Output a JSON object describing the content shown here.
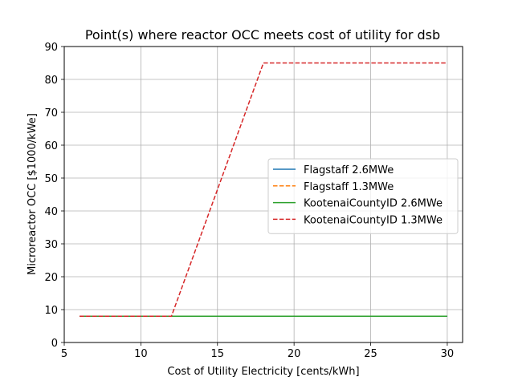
{
  "chart_data": {
    "type": "line",
    "title": "Point(s) where reactor OCC meets cost of utility for dsb",
    "xlabel": "Cost of Utility Electricity [cents/kWh]",
    "ylabel": "Microreactor OCC [$1000/kWe]",
    "xlim": [
      5,
      31
    ],
    "ylim": [
      0,
      90
    ],
    "xticks": [
      5,
      10,
      15,
      20,
      25,
      30
    ],
    "yticks": [
      0,
      10,
      20,
      30,
      40,
      50,
      60,
      70,
      80,
      90
    ],
    "grid": true,
    "legend_position": "center-right",
    "series": [
      {
        "name": "Flagstaff 2.6MWe",
        "color": "#1f77b4",
        "dash": "solid",
        "x": [
          6,
          30
        ],
        "y": [
          8,
          8
        ]
      },
      {
        "name": "Flagstaff 1.3MWe",
        "color": "#ff7f0e",
        "dash": "dashed",
        "x": [
          6,
          30
        ],
        "y": [
          8,
          8
        ]
      },
      {
        "name": "KootenaiCountyID 2.6MWe",
        "color": "#2ca02c",
        "dash": "solid",
        "x": [
          6,
          30
        ],
        "y": [
          8,
          8
        ]
      },
      {
        "name": "KootenaiCountyID 1.3MWe",
        "color": "#d62728",
        "dash": "dashed",
        "x": [
          6,
          12,
          18,
          30
        ],
        "y": [
          8,
          8,
          85,
          85
        ]
      }
    ]
  }
}
